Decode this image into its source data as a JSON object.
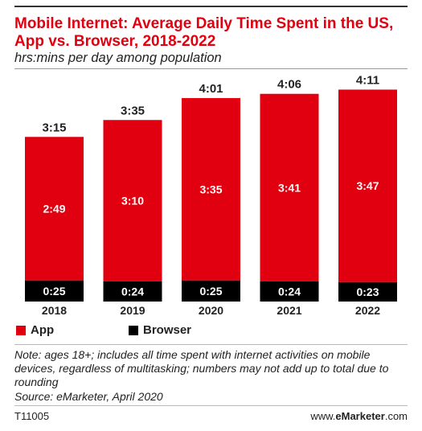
{
  "header": {
    "title": "Mobile Internet: Average Daily Time Spent in the US, App vs. Browser, 2018-2022",
    "subtitle": "hrs:mins per day among population"
  },
  "chart_data": {
    "type": "bar",
    "stacked": true,
    "categories": [
      "2018",
      "2019",
      "2020",
      "2021",
      "2022"
    ],
    "series": [
      {
        "name": "App",
        "color": "#e1000f",
        "values": [
          169,
          190,
          215,
          221,
          227
        ],
        "labels": [
          "2:49",
          "3:10",
          "3:35",
          "3:41",
          "3:47"
        ]
      },
      {
        "name": "Browser",
        "color": "#000000",
        "values": [
          25,
          24,
          25,
          24,
          23
        ],
        "labels": [
          "0:25",
          "0:24",
          "0:25",
          "0:24",
          "0:23"
        ]
      }
    ],
    "totals": {
      "values": [
        195,
        215,
        241,
        246,
        251
      ],
      "labels": [
        "3:15",
        "3:35",
        "4:01",
        "4:06",
        "4:11"
      ]
    },
    "unit": "minutes per day",
    "ylim": [
      0,
      260
    ],
    "grid": false,
    "legend": "bottom-left"
  },
  "legend": {
    "app": "App",
    "browser": "Browser"
  },
  "footer": {
    "note": "Note: ages 18+; includes all time spent with internet activities on mobile devices, regardless of multitasking; numbers may not add up to total due to rounding",
    "source": "Source: eMarketer, April 2020",
    "code": "T11005",
    "site_prefix": "www.",
    "site_brand": "eMarketer",
    "site_suffix": ".com"
  }
}
